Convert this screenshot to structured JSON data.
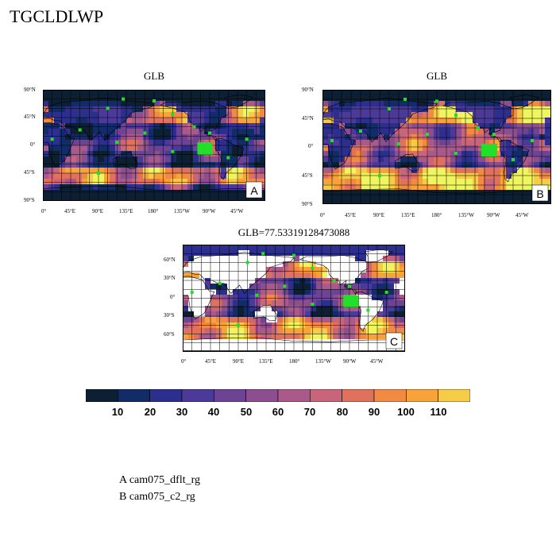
{
  "figure": {
    "title": "TGCLDLWP",
    "colors": {
      "palette": [
        "#0d2033",
        "#112c66",
        "#2c2f8e",
        "#4c3a98",
        "#6d4494",
        "#8c4e8f",
        "#a95a8b",
        "#c8657b",
        "#e0715c",
        "#f38a44",
        "#f7a33a",
        "#f5cb47",
        "#eef55e"
      ],
      "land": "#ffffff",
      "marker": "#22e02a",
      "coast": "#000000"
    }
  },
  "panels": [
    {
      "id": "A",
      "title": "GLB",
      "letter": "A",
      "lat_ticks": [
        "90°N",
        "45°N",
        "0°",
        "45°S",
        "90°S"
      ],
      "lon_ticks": [
        "0°",
        "45°E",
        "90°E",
        "135°E",
        "180°",
        "135°W",
        "90°W",
        "45°W"
      ]
    },
    {
      "id": "B",
      "title": "GLB",
      "letter": "B",
      "lat_ticks": [
        "90°N",
        "45°N",
        "0°",
        "45°S",
        "90°S"
      ],
      "lon_ticks": [
        "0°",
        "45°E",
        "90°E",
        "135°E",
        "180°",
        "135°W",
        "90°W",
        "45°W"
      ]
    },
    {
      "id": "C",
      "title": "GLB=77.53319128473088",
      "letter": "C",
      "lat_ticks": [
        "60°N",
        "30°N",
        "0°",
        "30°S",
        "60°S"
      ],
      "lon_ticks": [
        "0°",
        "45°E",
        "90°E",
        "135°E",
        "180°",
        "135°W",
        "90°W",
        "45°W"
      ]
    }
  ],
  "colorbar": {
    "labels": [
      "10",
      "20",
      "30",
      "40",
      "50",
      "60",
      "70",
      "80",
      "90",
      "100",
      "110"
    ]
  },
  "legend": {
    "lines": [
      "A  cam075_dflt_rg",
      "B  cam075_c2_rg"
    ]
  }
}
